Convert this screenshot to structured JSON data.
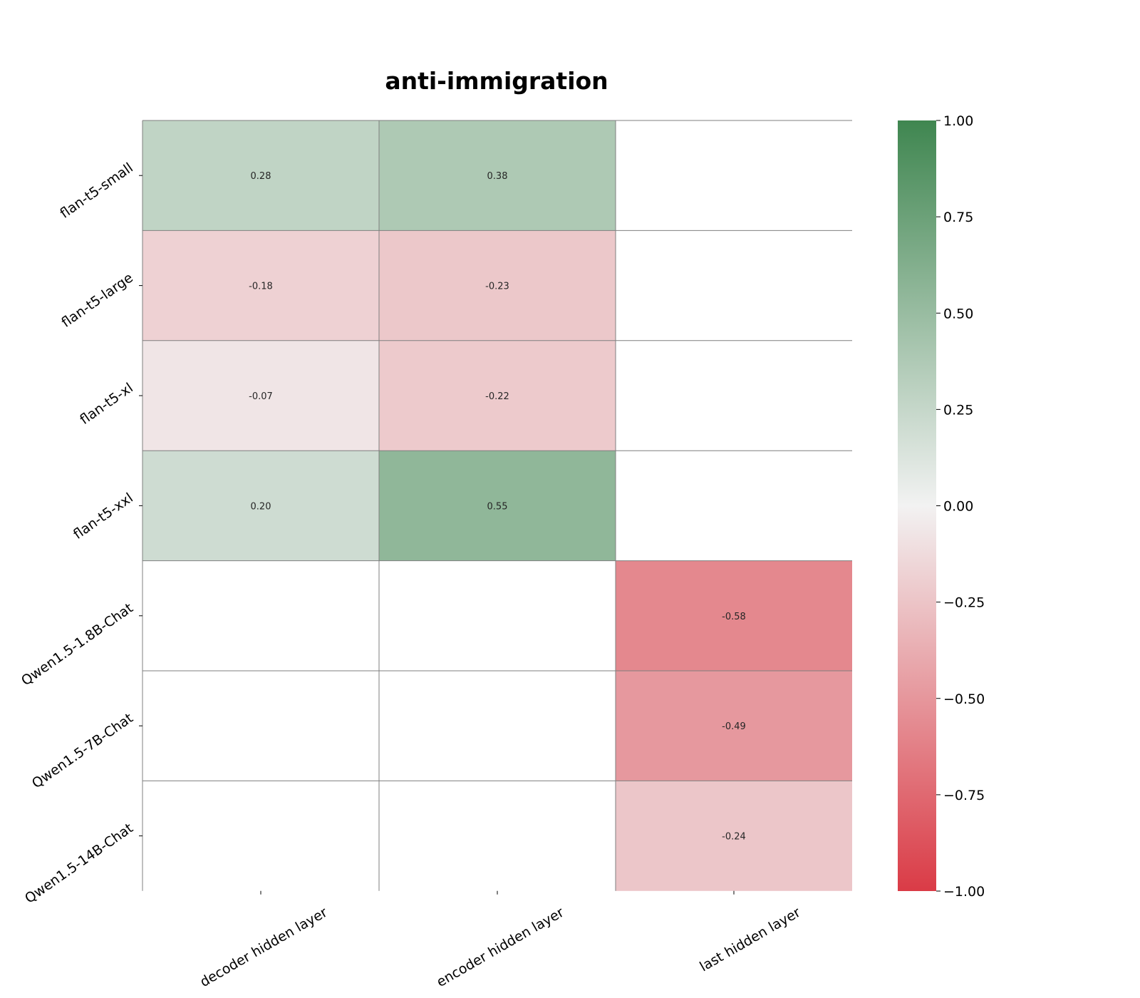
{
  "chart_data": {
    "type": "heatmap",
    "title": "anti-immigration",
    "rows": [
      "flan-t5-small",
      "flan-t5-large",
      "flan-t5-xl",
      "flan-t5-xxl",
      "Qwen1.5-1.8B-Chat",
      "Qwen1.5-7B-Chat",
      "Qwen1.5-14B-Chat"
    ],
    "columns": [
      "decoder hidden layer",
      "encoder hidden layer",
      "last hidden layer"
    ],
    "values": [
      [
        0.28,
        0.38,
        null
      ],
      [
        -0.18,
        -0.23,
        null
      ],
      [
        -0.07,
        -0.22,
        null
      ],
      [
        0.2,
        0.55,
        null
      ],
      [
        null,
        null,
        -0.58
      ],
      [
        null,
        null,
        -0.49
      ],
      [
        null,
        null,
        -0.24
      ]
    ],
    "value_labels": [
      [
        "0.28",
        "0.38",
        ""
      ],
      [
        "-0.18",
        "-0.23",
        ""
      ],
      [
        "-0.07",
        "-0.22",
        ""
      ],
      [
        "0.20",
        "0.55",
        ""
      ],
      [
        "",
        "",
        "-0.58"
      ],
      [
        "",
        "",
        "-0.49"
      ],
      [
        "",
        "",
        "-0.24"
      ]
    ],
    "colorbar": {
      "min": -1.0,
      "max": 1.0,
      "ticks": [
        1.0,
        0.75,
        0.5,
        0.25,
        0.0,
        -0.25,
        -0.5,
        -0.75,
        -1.0
      ],
      "tick_labels": [
        "1.00",
        "0.75",
        "0.50",
        "0.25",
        "0.00",
        "−0.25",
        "−0.50",
        "−0.75",
        "−1.00"
      ],
      "color_low": "#da3b46",
      "color_mid": "#f2f2f2",
      "color_high": "#3f8650"
    },
    "legend_placement": "right",
    "grid": true
  }
}
